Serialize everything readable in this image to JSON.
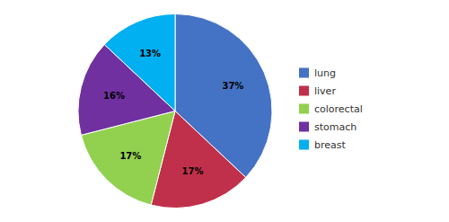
{
  "chart_data": {
    "type": "pie",
    "categories": [
      "lung",
      "liver",
      "colorectal",
      "stomach",
      "breast"
    ],
    "values": [
      37,
      17,
      17,
      16,
      13
    ],
    "value_labels": [
      "37%",
      "17%",
      "17%",
      "16%",
      "13%"
    ],
    "colors": [
      "#4472C4",
      "#C0304A",
      "#92D050",
      "#7030A0",
      "#00B0F0"
    ],
    "data_labels": true,
    "legend": "right"
  }
}
